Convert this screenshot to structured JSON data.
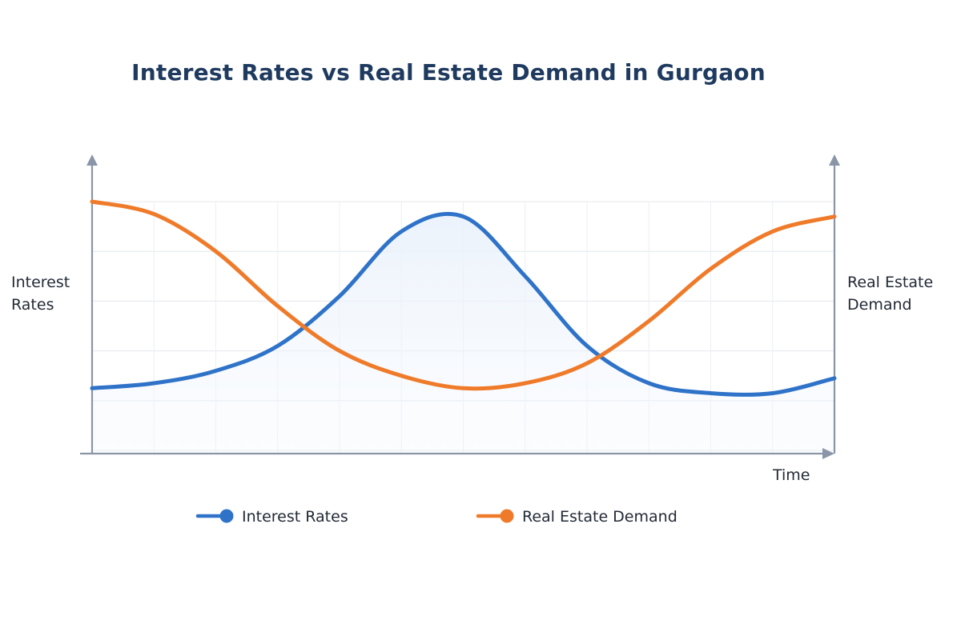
{
  "chart_data": {
    "type": "line",
    "title": "Interest Rates vs Real Estate Demand in Gurgaon",
    "xlabel": "Time",
    "ylabel_left": "Interest Rates",
    "ylabel_right": "Real Estate Demand",
    "x": [
      0,
      1,
      2,
      3,
      4,
      5,
      6,
      7,
      8,
      9,
      10,
      11,
      12
    ],
    "xlim": [
      0,
      12
    ],
    "ylim": [
      0,
      100
    ],
    "grid": true,
    "legend_position": "bottom-center",
    "series": [
      {
        "name": "Interest Rates",
        "color": "#2f73c9",
        "values": [
          25,
          27,
          32,
          42,
          62,
          88,
          94,
          70,
          42,
          27,
          23,
          23,
          29
        ]
      },
      {
        "name": "Real Estate Demand",
        "color": "#ef7b2a",
        "values": [
          100,
          95,
          80,
          58,
          40,
          30,
          25,
          27,
          35,
          52,
          73,
          88,
          94
        ]
      }
    ]
  }
}
